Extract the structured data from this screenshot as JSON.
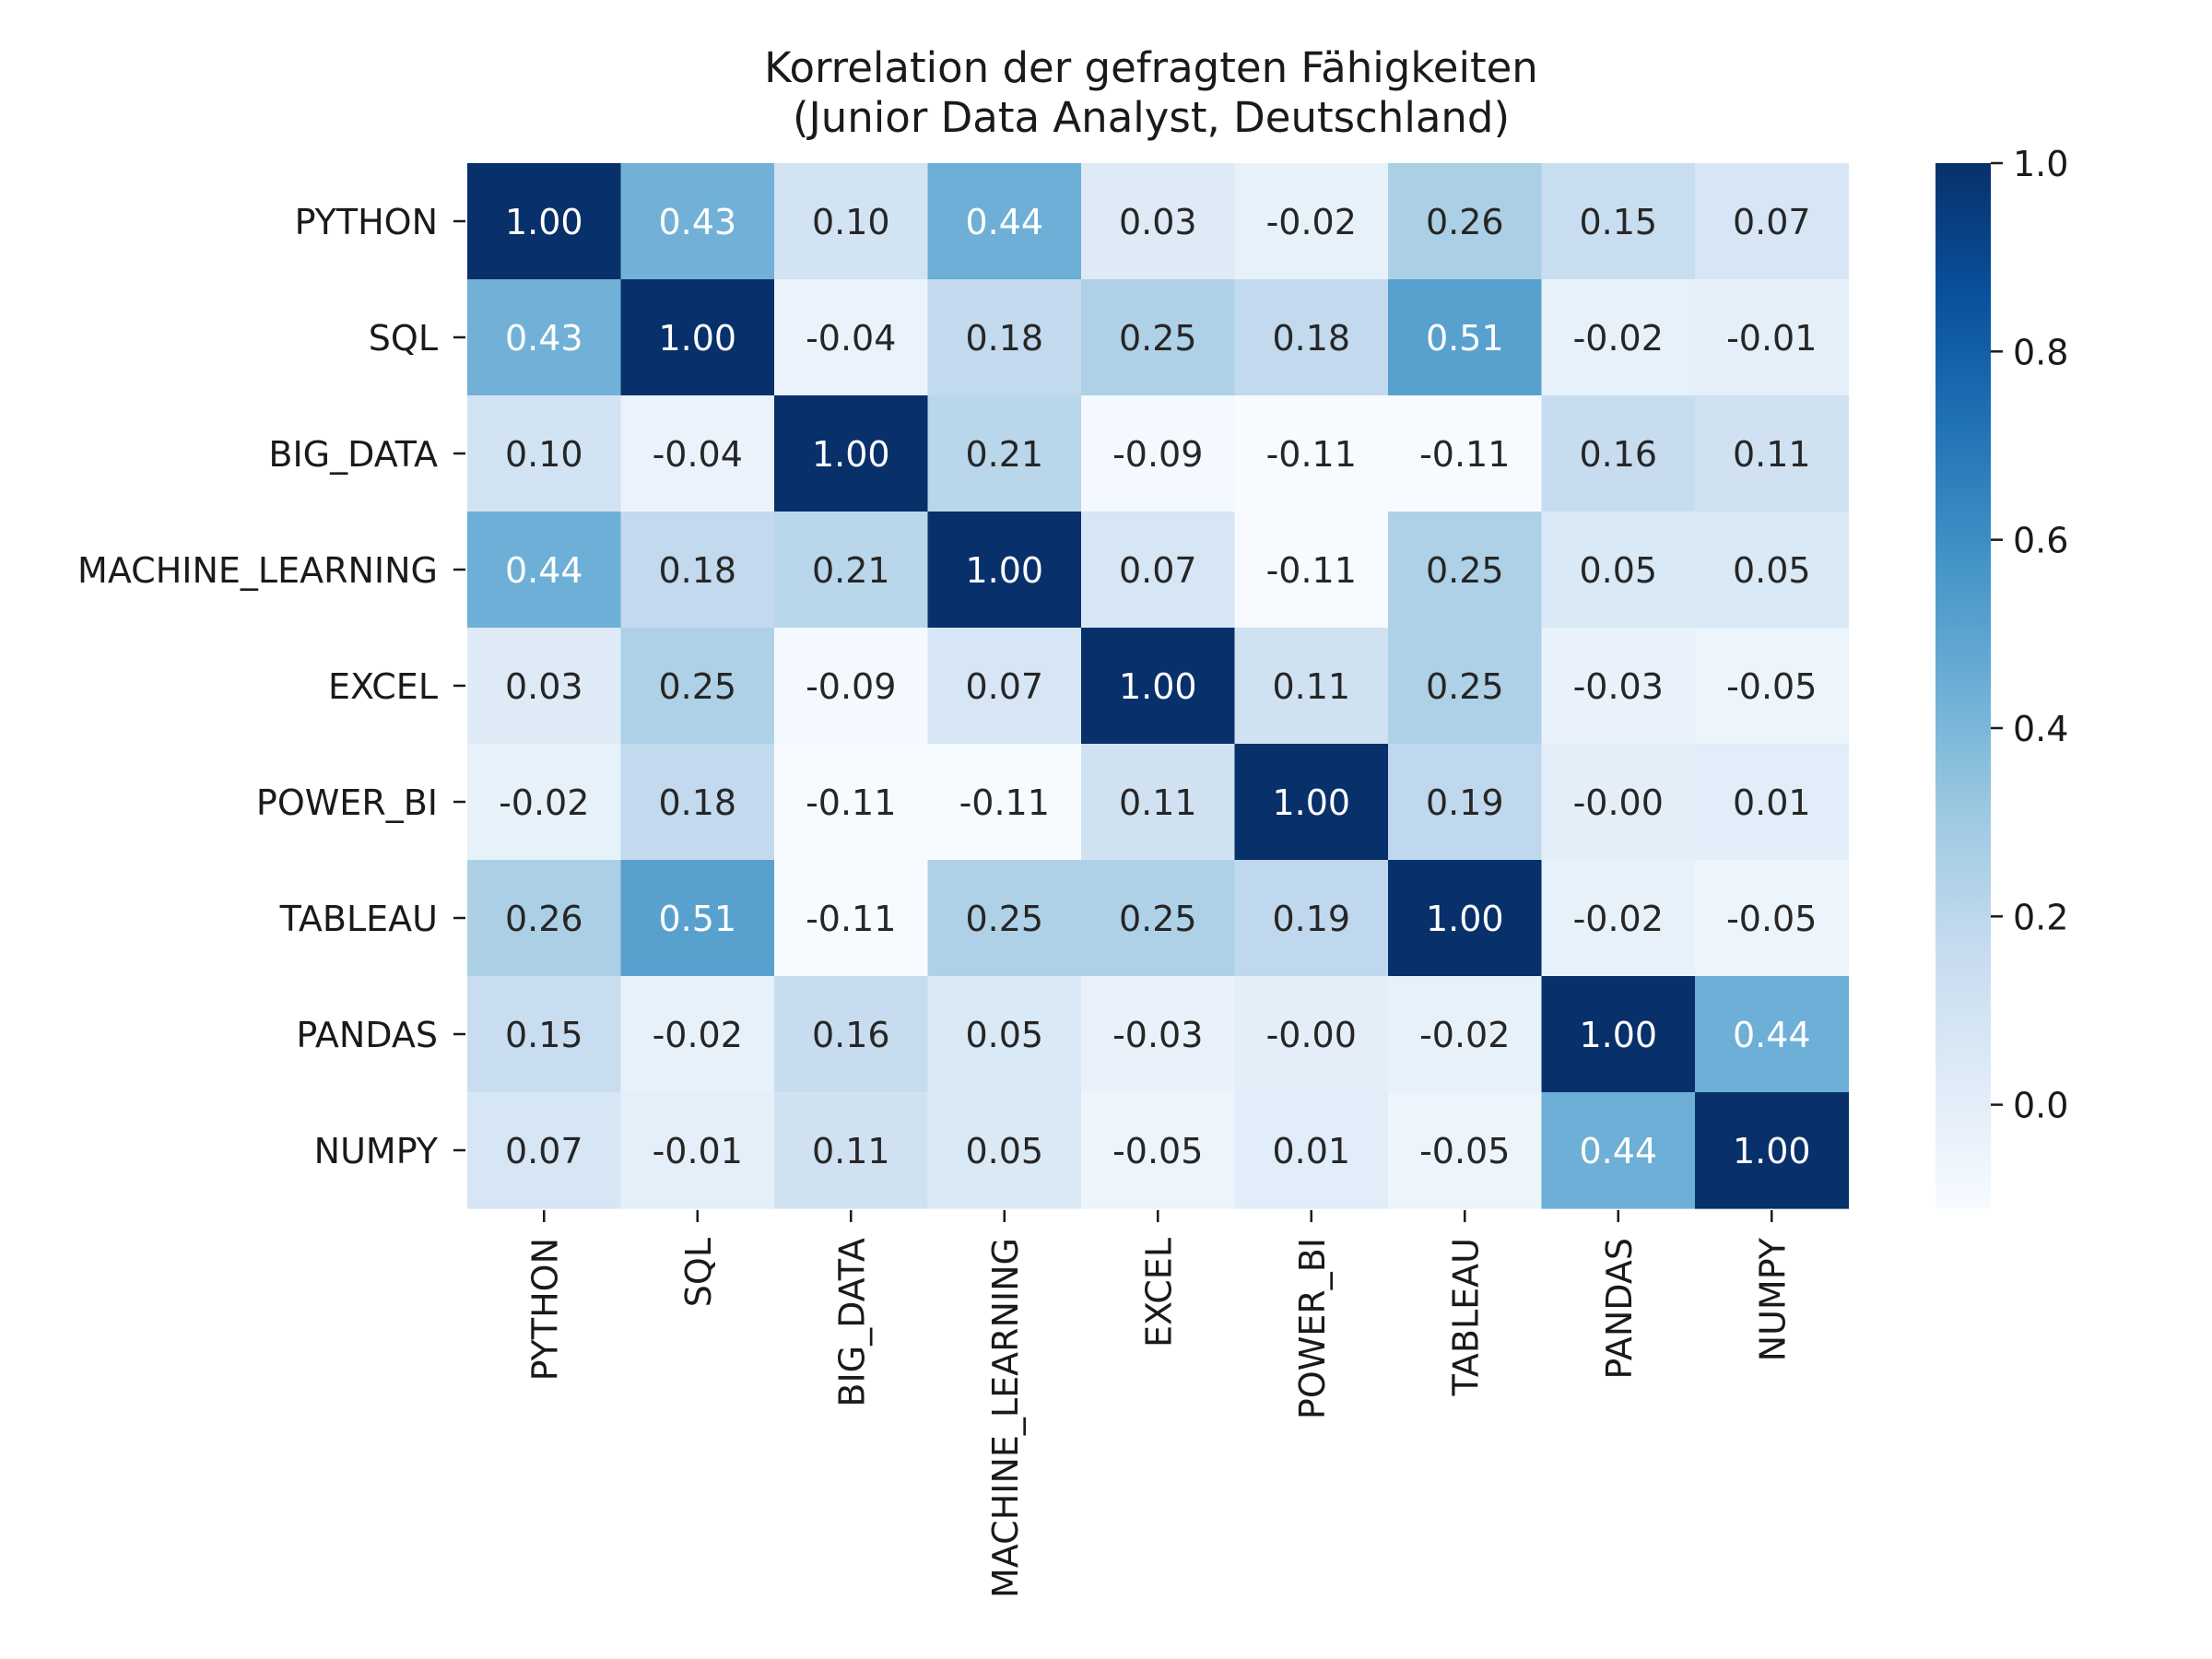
{
  "chart_data": {
    "type": "heatmap",
    "title": "Korrelation der gefragten Fähigkeiten",
    "subtitle": "(Junior Data Analyst, Deutschland)",
    "rows": [
      "PYTHON",
      "SQL",
      "BIG_DATA",
      "MACHINE_LEARNING",
      "EXCEL",
      "POWER_BI",
      "TABLEAU",
      "PANDAS",
      "NUMPY"
    ],
    "columns": [
      "PYTHON",
      "SQL",
      "BIG_DATA",
      "MACHINE_LEARNING",
      "EXCEL",
      "POWER_BI",
      "TABLEAU",
      "PANDAS",
      "NUMPY"
    ],
    "values": [
      [
        1.0,
        0.43,
        0.1,
        0.44,
        0.03,
        -0.02,
        0.26,
        0.15,
        0.07
      ],
      [
        0.43,
        1.0,
        -0.04,
        0.18,
        0.25,
        0.18,
        0.51,
        -0.02,
        -0.01
      ],
      [
        0.1,
        -0.04,
        1.0,
        0.21,
        -0.09,
        -0.11,
        -0.11,
        0.16,
        0.11
      ],
      [
        0.44,
        0.18,
        0.21,
        1.0,
        0.07,
        -0.11,
        0.25,
        0.05,
        0.05
      ],
      [
        0.03,
        0.25,
        -0.09,
        0.07,
        1.0,
        0.11,
        0.25,
        -0.03,
        -0.05
      ],
      [
        -0.02,
        0.18,
        -0.11,
        -0.11,
        0.11,
        1.0,
        0.19,
        -0.0,
        0.01
      ],
      [
        0.26,
        0.51,
        -0.11,
        0.25,
        0.25,
        0.19,
        1.0,
        -0.02,
        -0.05
      ],
      [
        0.15,
        -0.02,
        0.16,
        0.05,
        -0.03,
        -0.0,
        -0.02,
        1.0,
        0.44
      ],
      [
        0.07,
        -0.01,
        0.11,
        0.05,
        -0.05,
        0.01,
        -0.05,
        0.44,
        1.0
      ]
    ],
    "value_labels": [
      [
        "1.00",
        "0.43",
        "0.10",
        "0.44",
        "0.03",
        "-0.02",
        "0.26",
        "0.15",
        "0.07"
      ],
      [
        "0.43",
        "1.00",
        "-0.04",
        "0.18",
        "0.25",
        "0.18",
        "0.51",
        "-0.02",
        "-0.01"
      ],
      [
        "0.10",
        "-0.04",
        "1.00",
        "0.21",
        "-0.09",
        "-0.11",
        "-0.11",
        "0.16",
        "0.11"
      ],
      [
        "0.44",
        "0.18",
        "0.21",
        "1.00",
        "0.07",
        "-0.11",
        "0.25",
        "0.05",
        "0.05"
      ],
      [
        "0.03",
        "0.25",
        "-0.09",
        "0.07",
        "1.00",
        "0.11",
        "0.25",
        "-0.03",
        "-0.05"
      ],
      [
        "-0.02",
        "0.18",
        "-0.11",
        "-0.11",
        "0.11",
        "1.00",
        "0.19",
        "-0.00",
        "0.01"
      ],
      [
        "0.26",
        "0.51",
        "-0.11",
        "0.25",
        "0.25",
        "0.19",
        "1.00",
        "-0.02",
        "-0.05"
      ],
      [
        "0.15",
        "-0.02",
        "0.16",
        "0.05",
        "-0.03",
        "-0.00",
        "-0.02",
        "1.00",
        "0.44"
      ],
      [
        "0.07",
        "-0.01",
        "0.11",
        "0.05",
        "-0.05",
        "0.01",
        "-0.05",
        "0.44",
        "1.00"
      ]
    ],
    "colormap": "Blues",
    "color_range": [
      -0.11,
      1.0
    ],
    "colorbar_ticks": [
      "0.0",
      "0.2",
      "0.4",
      "0.6",
      "0.8",
      "1.0"
    ],
    "colorbar_tick_values": [
      0.0,
      0.2,
      0.4,
      0.6,
      0.8,
      1.0
    ],
    "grid": false,
    "legend": "colorbar-right"
  }
}
